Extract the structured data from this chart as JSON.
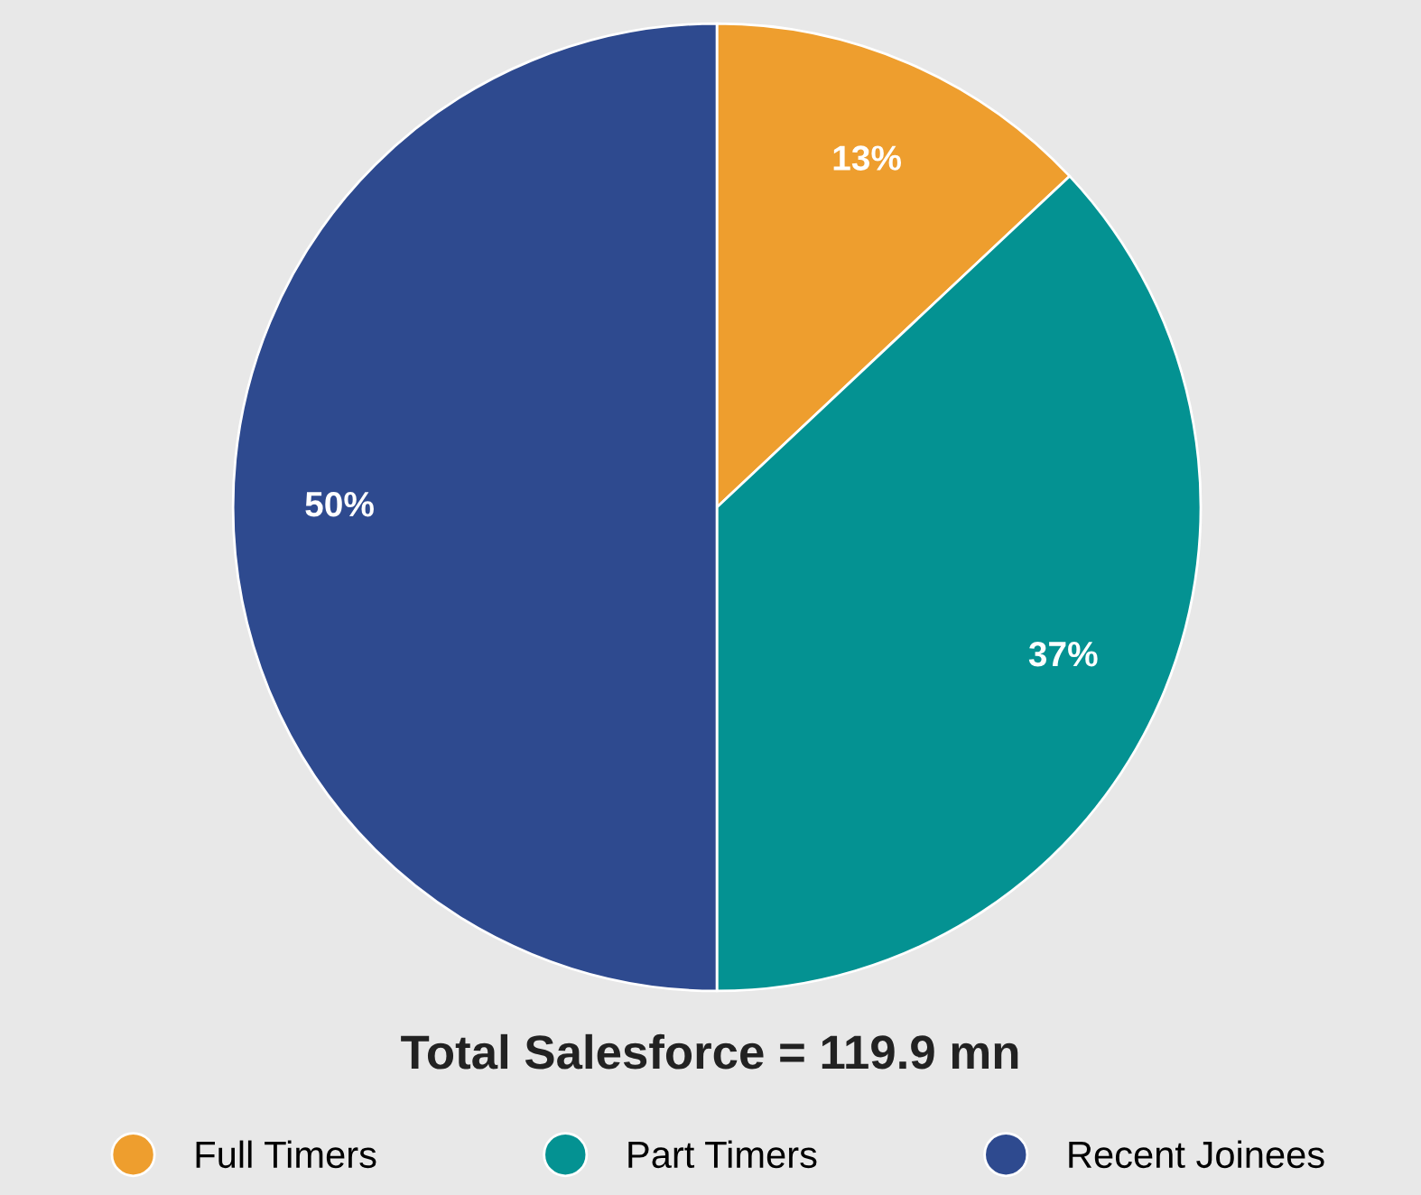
{
  "chart_data": {
    "type": "pie",
    "title": "Total Salesforce = 119.9 mn",
    "categories": [
      "Full Timers",
      "Part Timers",
      "Recent Joinees"
    ],
    "values": [
      13,
      37,
      50
    ],
    "colors": [
      "#ee9e2e",
      "#049292",
      "#2e4a8f"
    ],
    "value_labels": [
      "13%",
      "37%",
      "50%"
    ],
    "legend": "bottom"
  }
}
